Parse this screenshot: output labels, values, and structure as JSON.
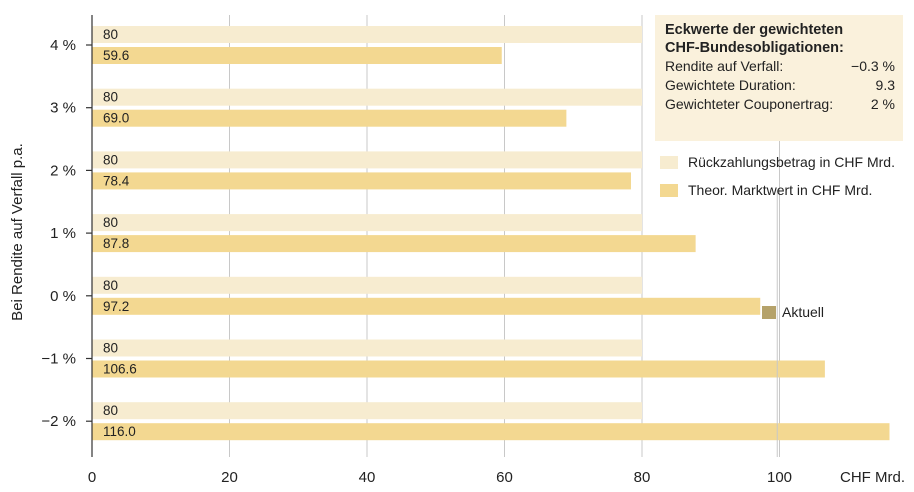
{
  "chart_data": {
    "type": "bar",
    "orientation": "horizontal",
    "ylabel": "Bei Rendite auf Verfall p.a.",
    "xlabel": "CHF Mrd.",
    "xlim": [
      0,
      115
    ],
    "xticks": [
      0,
      20,
      40,
      60,
      80,
      100
    ],
    "xtick_labels": [
      "0",
      "20",
      "40",
      "60",
      "80",
      "100"
    ],
    "categories": [
      "4 %",
      "3 %",
      "2 %",
      "1 %",
      "0 %",
      "−1 %",
      "−2 %"
    ],
    "series": [
      {
        "name": "Rückzahlungsbetrag in CHF Mrd.",
        "color": "#f7ecd0",
        "values": [
          80,
          80,
          80,
          80,
          80,
          80,
          80
        ],
        "labels": [
          "80",
          "80",
          "80",
          "80",
          "80",
          "80",
          "80"
        ]
      },
      {
        "name": "Theor. Marktwert in CHF Mrd.",
        "color": "#f3d891",
        "values": [
          59.6,
          69.0,
          78.4,
          87.8,
          97.2,
          106.6,
          116.0
        ],
        "labels": [
          "59.6",
          "69.0",
          "78.4",
          "87.8",
          "97.2",
          "106.6",
          "116.0"
        ]
      }
    ],
    "grid": true,
    "legend": "right"
  },
  "infobox": {
    "title_line1": "Eckwerte der gewichteten",
    "title_line2": "CHF-Bundesobligationen:",
    "rows": [
      {
        "label": "Rendite auf Verfall:",
        "value": "−0.3 %"
      },
      {
        "label": "Gewichtete Duration:",
        "value": "9.3"
      },
      {
        "label": "Gewichteter Couponertrag:",
        "value": "2 %"
      }
    ]
  },
  "legend": {
    "items": [
      {
        "label": "Rückzahlungsbetrag in CHF Mrd.",
        "color": "#f7ecd0"
      },
      {
        "label": "Theor. Marktwert in CHF Mrd.",
        "color": "#f3d891"
      }
    ]
  },
  "marker": {
    "label": "Aktuell",
    "color": "#b5a26a",
    "x": 97.2
  }
}
